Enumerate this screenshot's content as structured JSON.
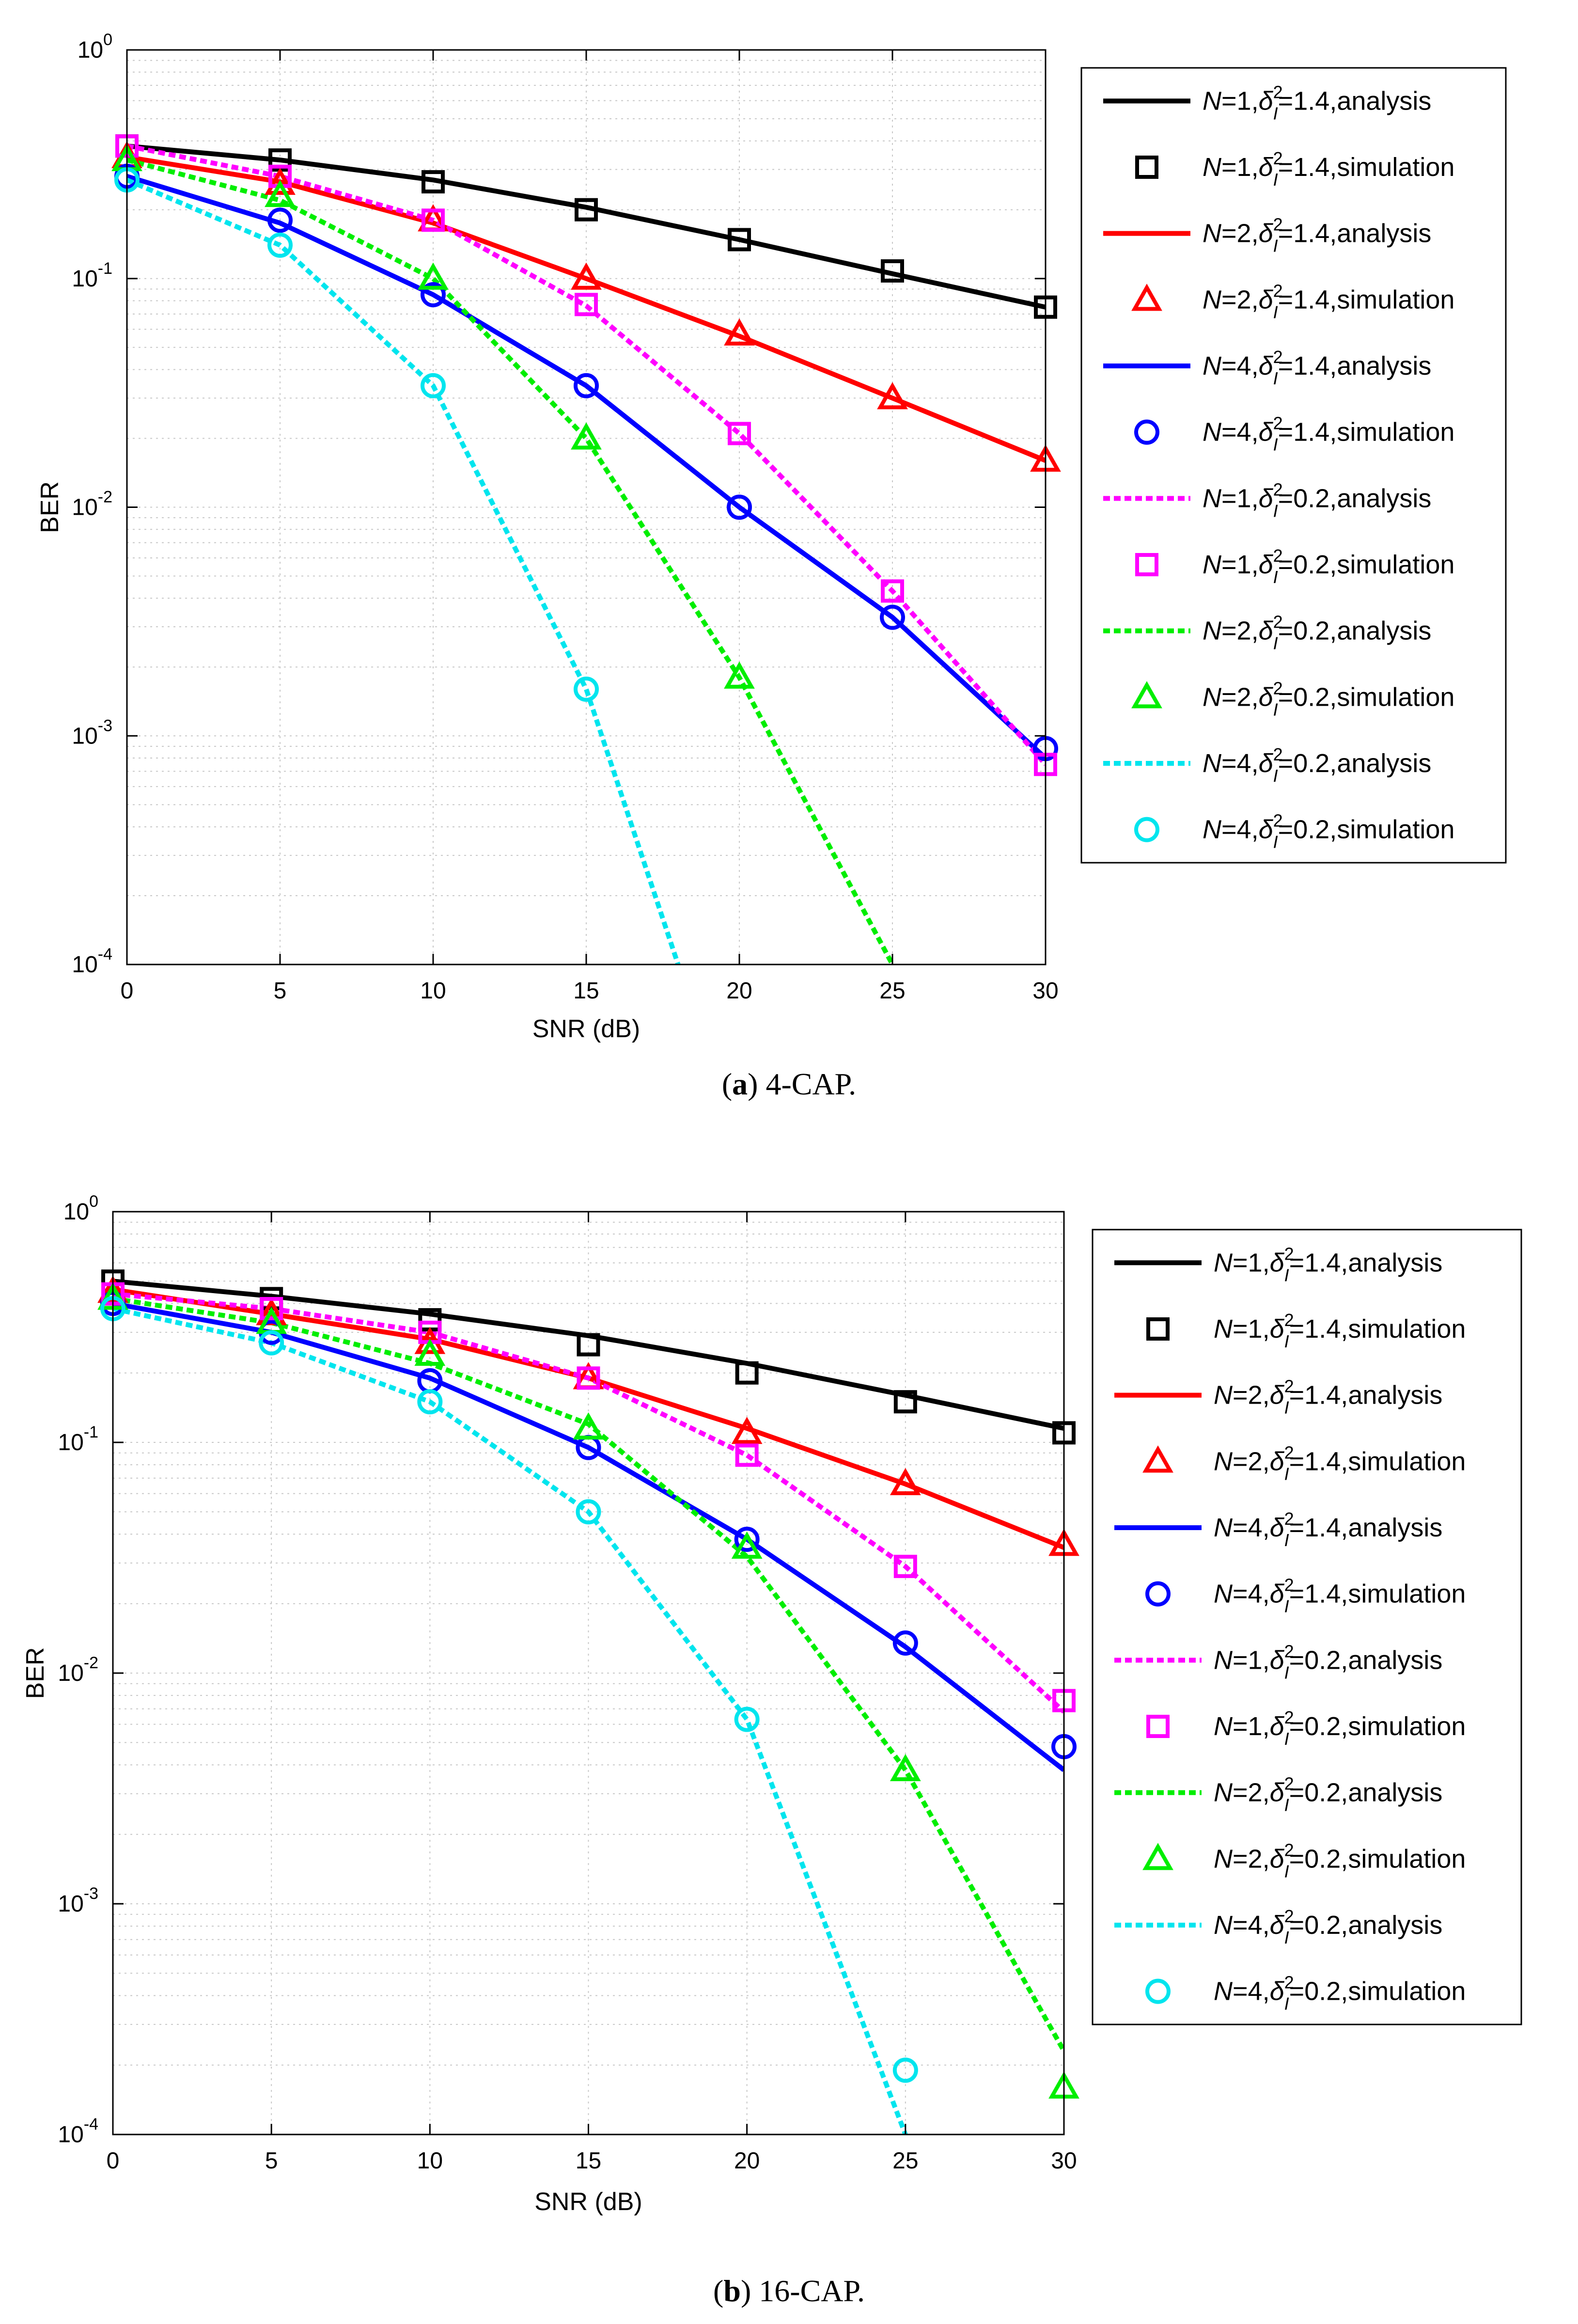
{
  "chart_data": [
    {
      "type": "line",
      "caption_label": "a",
      "caption_text": "4-CAP.",
      "xlabel": "SNR (dB)",
      "ylabel": "BER",
      "yscale": "log",
      "xlim": [
        0,
        30
      ],
      "ylim": [
        0.0001,
        1
      ],
      "xticks": [
        "0",
        "5",
        "10",
        "15",
        "20",
        "25",
        "30"
      ],
      "yticks": [
        {
          "base": "10",
          "exp": "0"
        },
        {
          "base": "10",
          "exp": "-1"
        },
        {
          "base": "10",
          "exp": "-2"
        },
        {
          "base": "10",
          "exp": "-3"
        },
        {
          "base": "10",
          "exp": "-4"
        }
      ],
      "grid": true,
      "legend_position": "right",
      "series": [
        {
          "N": "1",
          "delta": "1.4",
          "kind": "analysis",
          "color": "#000000",
          "style": "solid",
          "marker": "none",
          "x": [
            0,
            5,
            10,
            15,
            20,
            25,
            30
          ],
          "values": [
            0.38,
            0.33,
            0.27,
            0.205,
            0.148,
            0.105,
            0.075
          ]
        },
        {
          "N": "1",
          "delta": "1.4",
          "kind": "simulation",
          "color": "#000000",
          "style": "none",
          "marker": "square",
          "x": [
            0,
            5,
            10,
            15,
            20,
            25,
            30
          ],
          "values": [
            0.38,
            0.33,
            0.265,
            0.2,
            0.148,
            0.108,
            0.075
          ]
        },
        {
          "N": "2",
          "delta": "1.4",
          "kind": "analysis",
          "color": "#ff0000",
          "style": "solid",
          "marker": "none",
          "x": [
            0,
            5,
            10,
            15,
            20,
            25,
            30
          ],
          "values": [
            0.34,
            0.265,
            0.175,
            0.1,
            0.056,
            0.03,
            0.016
          ]
        },
        {
          "N": "2",
          "delta": "1.4",
          "kind": "simulation",
          "color": "#ff0000",
          "style": "none",
          "marker": "triangle",
          "x": [
            0,
            5,
            10,
            15,
            20,
            25,
            30
          ],
          "values": [
            0.34,
            0.26,
            0.18,
            0.1,
            0.057,
            0.03,
            0.016
          ]
        },
        {
          "N": "4",
          "delta": "1.4",
          "kind": "analysis",
          "color": "#0000ff",
          "style": "solid",
          "marker": "none",
          "x": [
            0,
            5,
            10,
            15,
            20,
            25,
            30
          ],
          "values": [
            0.28,
            0.175,
            0.085,
            0.034,
            0.01,
            0.0033,
            0.0008
          ]
        },
        {
          "N": "4",
          "delta": "1.4",
          "kind": "simulation",
          "color": "#0000ff",
          "style": "none",
          "marker": "circle",
          "x": [
            0,
            5,
            10,
            15,
            20,
            25,
            30
          ],
          "values": [
            0.28,
            0.18,
            0.085,
            0.034,
            0.01,
            0.0033,
            0.00088
          ]
        },
        {
          "N": "1",
          "delta": "0.2",
          "kind": "analysis",
          "color": "#ff00ff",
          "style": "dotted",
          "marker": "none",
          "x": [
            0,
            5,
            10,
            15,
            20,
            25,
            30
          ],
          "values": [
            0.38,
            0.28,
            0.18,
            0.076,
            0.021,
            0.0043,
            0.00075
          ]
        },
        {
          "N": "1",
          "delta": "0.2",
          "kind": "simulation",
          "color": "#ff00ff",
          "style": "none",
          "marker": "square",
          "x": [
            0,
            5,
            10,
            15,
            20,
            25,
            30
          ],
          "values": [
            0.38,
            0.28,
            0.18,
            0.077,
            0.021,
            0.0043,
            0.00075
          ]
        },
        {
          "N": "2",
          "delta": "0.2",
          "kind": "analysis",
          "color": "#00ee00",
          "style": "dotted",
          "marker": "none",
          "x": [
            0,
            5,
            10,
            15,
            20,
            25
          ],
          "values": [
            0.33,
            0.22,
            0.1,
            0.02,
            0.0018,
            0.0001
          ]
        },
        {
          "N": "2",
          "delta": "0.2",
          "kind": "simulation",
          "color": "#00ee00",
          "style": "none",
          "marker": "triangle",
          "x": [
            0,
            5,
            10,
            15,
            20
          ],
          "values": [
            0.33,
            0.23,
            0.1,
            0.02,
            0.0018
          ]
        },
        {
          "N": "4",
          "delta": "0.2",
          "kind": "analysis",
          "color": "#00e5ee",
          "style": "dotted",
          "marker": "none",
          "x": [
            0,
            5,
            10,
            15,
            18
          ],
          "values": [
            0.27,
            0.14,
            0.034,
            0.0016,
            0.0001
          ]
        },
        {
          "N": "4",
          "delta": "0.2",
          "kind": "simulation",
          "color": "#00e5ee",
          "style": "none",
          "marker": "circle",
          "x": [
            0,
            5,
            10,
            15
          ],
          "values": [
            0.27,
            0.14,
            0.034,
            0.0016
          ]
        }
      ]
    },
    {
      "type": "line",
      "caption_label": "b",
      "caption_text": "16-CAP.",
      "xlabel": "SNR (dB)",
      "ylabel": "BER",
      "yscale": "log",
      "xlim": [
        0,
        30
      ],
      "ylim": [
        0.0001,
        1
      ],
      "xticks": [
        "0",
        "5",
        "10",
        "15",
        "20",
        "25",
        "30"
      ],
      "yticks": [
        {
          "base": "10",
          "exp": "0"
        },
        {
          "base": "10",
          "exp": "-1"
        },
        {
          "base": "10",
          "exp": "-2"
        },
        {
          "base": "10",
          "exp": "-3"
        },
        {
          "base": "10",
          "exp": "-4"
        }
      ],
      "grid": true,
      "legend_position": "right",
      "series": [
        {
          "N": "1",
          "delta": "1.4",
          "kind": "analysis",
          "color": "#000000",
          "style": "solid",
          "marker": "none",
          "x": [
            0,
            5,
            10,
            15,
            20,
            25,
            30
          ],
          "values": [
            0.5,
            0.43,
            0.36,
            0.29,
            0.22,
            0.16,
            0.115
          ]
        },
        {
          "N": "1",
          "delta": "1.4",
          "kind": "simulation",
          "color": "#000000",
          "style": "none",
          "marker": "square",
          "x": [
            0,
            5,
            10,
            15,
            20,
            25,
            30
          ],
          "values": [
            0.5,
            0.42,
            0.34,
            0.265,
            0.2,
            0.15,
            0.11
          ]
        },
        {
          "N": "2",
          "delta": "1.4",
          "kind": "analysis",
          "color": "#ff0000",
          "style": "solid",
          "marker": "none",
          "x": [
            0,
            5,
            10,
            15,
            20,
            25,
            30
          ],
          "values": [
            0.46,
            0.36,
            0.28,
            0.19,
            0.115,
            0.066,
            0.035
          ]
        },
        {
          "N": "2",
          "delta": "1.4",
          "kind": "simulation",
          "color": "#ff0000",
          "style": "none",
          "marker": "triangle",
          "x": [
            0,
            5,
            10,
            15,
            20,
            25,
            30
          ],
          "values": [
            0.45,
            0.36,
            0.27,
            0.19,
            0.11,
            0.066,
            0.036
          ]
        },
        {
          "N": "4",
          "delta": "1.4",
          "kind": "analysis",
          "color": "#0000ff",
          "style": "solid",
          "marker": "none",
          "x": [
            0,
            5,
            10,
            15,
            20,
            25,
            30
          ],
          "values": [
            0.4,
            0.3,
            0.19,
            0.095,
            0.038,
            0.013,
            0.0038
          ]
        },
        {
          "N": "4",
          "delta": "1.4",
          "kind": "simulation",
          "color": "#0000ff",
          "style": "none",
          "marker": "circle",
          "x": [
            0,
            5,
            10,
            15,
            20,
            25,
            30
          ],
          "values": [
            0.4,
            0.3,
            0.185,
            0.095,
            0.038,
            0.0135,
            0.0048
          ]
        },
        {
          "N": "1",
          "delta": "0.2",
          "kind": "analysis",
          "color": "#ff00ff",
          "style": "dotted",
          "marker": "none",
          "x": [
            0,
            5,
            10,
            15,
            20,
            25,
            30
          ],
          "values": [
            0.44,
            0.38,
            0.3,
            0.19,
            0.088,
            0.029,
            0.0068
          ]
        },
        {
          "N": "1",
          "delta": "0.2",
          "kind": "simulation",
          "color": "#ff00ff",
          "style": "none",
          "marker": "square",
          "x": [
            0,
            5,
            10,
            15,
            20,
            25,
            30
          ],
          "values": [
            0.44,
            0.38,
            0.3,
            0.19,
            0.088,
            0.029,
            0.0076
          ]
        },
        {
          "N": "2",
          "delta": "0.2",
          "kind": "analysis",
          "color": "#00ee00",
          "style": "dotted",
          "marker": "none",
          "x": [
            0,
            5,
            10,
            15,
            20,
            25,
            30
          ],
          "values": [
            0.42,
            0.33,
            0.22,
            0.12,
            0.032,
            0.0038,
            0.00023
          ]
        },
        {
          "N": "2",
          "delta": "0.2",
          "kind": "simulation",
          "color": "#00ee00",
          "style": "none",
          "marker": "triangle",
          "x": [
            0,
            5,
            10,
            15,
            20,
            25,
            30
          ],
          "values": [
            0.42,
            0.33,
            0.24,
            0.115,
            0.035,
            0.0038,
            0.00016
          ]
        },
        {
          "N": "4",
          "delta": "0.2",
          "kind": "analysis",
          "color": "#00e5ee",
          "style": "dotted",
          "marker": "none",
          "x": [
            0,
            5,
            10,
            15,
            20,
            25
          ],
          "values": [
            0.38,
            0.27,
            0.15,
            0.05,
            0.0063,
            0.0001
          ]
        },
        {
          "N": "4",
          "delta": "0.2",
          "kind": "simulation",
          "color": "#00e5ee",
          "style": "none",
          "marker": "circle",
          "x": [
            0,
            5,
            10,
            15,
            20,
            25
          ],
          "values": [
            0.38,
            0.27,
            0.15,
            0.05,
            0.0063,
            0.00019
          ]
        }
      ]
    }
  ]
}
